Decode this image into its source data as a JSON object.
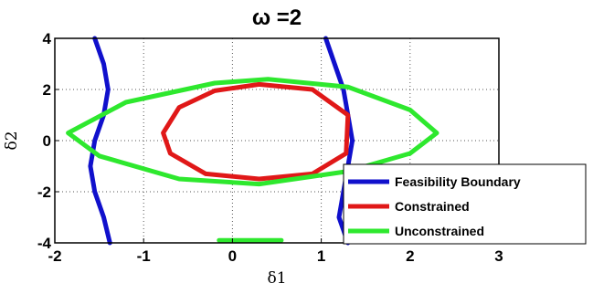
{
  "chart_data": {
    "type": "line",
    "title": "ω =2",
    "xlabel": "δ1",
    "ylabel": "δ2",
    "xlim": [
      -2,
      3
    ],
    "ylim": [
      -4,
      4
    ],
    "x_ticks": [
      -2,
      -1,
      0,
      1,
      2,
      3
    ],
    "y_ticks": [
      -4,
      -2,
      0,
      2,
      4
    ],
    "x_tick_labels": [
      "-2",
      "-1",
      "0",
      "1",
      "2",
      "3"
    ],
    "y_tick_labels": [
      "-4",
      "-2",
      "0",
      "2",
      "4"
    ],
    "grid": true,
    "legend_position": "bottom-right",
    "series": [
      {
        "name": "Feasibility Boundary",
        "color": "#1010cc",
        "paths": [
          [
            [
              -1.55,
              4.0
            ],
            [
              -1.45,
              3.0
            ],
            [
              -1.4,
              2.0
            ],
            [
              -1.45,
              1.0
            ],
            [
              -1.55,
              0.0
            ],
            [
              -1.6,
              -1.0
            ],
            [
              -1.55,
              -2.0
            ],
            [
              -1.45,
              -3.0
            ],
            [
              -1.38,
              -4.0
            ]
          ],
          [
            [
              1.05,
              4.0
            ],
            [
              1.15,
              3.0
            ],
            [
              1.25,
              2.0
            ],
            [
              1.3,
              1.0
            ],
            [
              1.35,
              0.0
            ],
            [
              1.3,
              -1.0
            ],
            [
              1.25,
              -2.0
            ],
            [
              1.2,
              -3.0
            ],
            [
              1.3,
              -4.0
            ]
          ]
        ]
      },
      {
        "name": "Constrained",
        "color": "#e01818",
        "paths": [
          [
            [
              -0.78,
              0.3
            ],
            [
              -0.6,
              1.3
            ],
            [
              -0.2,
              1.95
            ],
            [
              0.3,
              2.2
            ],
            [
              0.9,
              2.0
            ],
            [
              1.3,
              1.0
            ],
            [
              1.28,
              -0.5
            ],
            [
              0.9,
              -1.3
            ],
            [
              0.3,
              -1.5
            ],
            [
              -0.3,
              -1.3
            ],
            [
              -0.7,
              -0.5
            ],
            [
              -0.78,
              0.3
            ]
          ]
        ]
      },
      {
        "name": "Unconstrained",
        "color": "#2ee82e",
        "paths": [
          [
            [
              -1.85,
              0.3
            ],
            [
              -1.2,
              1.5
            ],
            [
              -0.2,
              2.25
            ],
            [
              0.4,
              2.4
            ],
            [
              1.3,
              2.1
            ],
            [
              2.0,
              1.2
            ],
            [
              2.3,
              0.3
            ],
            [
              2.0,
              -0.5
            ],
            [
              1.3,
              -1.2
            ],
            [
              0.3,
              -1.7
            ],
            [
              -0.6,
              -1.5
            ],
            [
              -1.5,
              -0.6
            ],
            [
              -1.85,
              0.3
            ]
          ],
          [
            [
              -0.15,
              -3.9
            ],
            [
              0.05,
              -3.9
            ],
            [
              0.3,
              -3.9
            ],
            [
              0.55,
              -3.9
            ]
          ]
        ]
      }
    ]
  }
}
